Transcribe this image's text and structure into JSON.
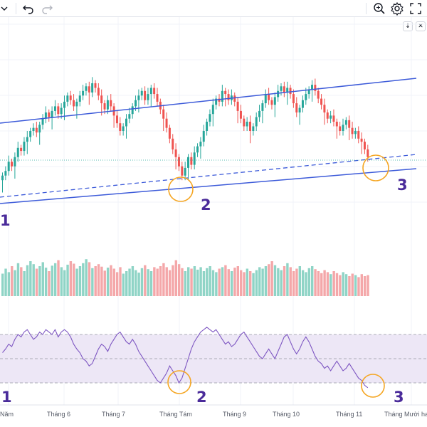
{
  "toolbar": {
    "left_icons": [
      "chevron-down-icon",
      "undo-icon",
      "redo-icon"
    ],
    "right_icons": [
      "zoom-search-icon",
      "gear-icon",
      "fullscreen-icon"
    ]
  },
  "pane_controls": {
    "down_label": "↓",
    "close_label": "✕"
  },
  "annotations": {
    "price_labels": [
      "1",
      "2",
      "3"
    ],
    "rsi_labels": [
      "1",
      "2",
      "3"
    ]
  },
  "chart_data": {
    "type": "candlestick",
    "x_ticks": [
      "Năm",
      "Tháng 6",
      "Tháng 7",
      "Tháng Tám",
      "Tháng 9",
      "Tháng 10",
      "Tháng 11",
      "Tháng Mười hai"
    ],
    "colors": {
      "up": "#26a69a",
      "down": "#ef5350",
      "up_volume": "#8fd4c6",
      "down_volume": "#f4a7a9",
      "channel": "#3d5bd9",
      "rsi_line": "#7e57c2",
      "rsi_band": "#ede7f6",
      "highlight_circle": "#f5a623",
      "annotation_text": "#4a2b9a"
    },
    "series": [
      {
        "name": "",
        "type": "candlestick",
        "close": [
          174,
          177,
          183,
          180,
          186,
          192,
          190,
          196,
          199,
          203,
          205,
          202,
          207,
          211,
          215,
          212,
          216,
          219,
          214,
          218,
          222,
          226,
          223,
          219,
          222,
          226,
          229,
          232,
          228,
          234,
          231,
          226,
          221,
          217,
          223,
          219,
          213,
          208,
          203,
          206,
          211,
          214,
          219,
          223,
          226,
          229,
          223,
          227,
          231,
          227,
          222,
          217,
          211,
          205,
          198,
          191,
          186,
          180,
          174,
          179,
          186,
          181,
          189,
          193,
          196,
          203,
          209,
          214,
          220,
          224,
          222,
          229,
          227,
          223,
          226,
          222,
          216,
          211,
          206,
          209,
          203,
          206,
          212,
          216,
          221,
          227,
          223,
          220,
          225,
          229,
          232,
          228,
          231,
          227,
          221,
          215,
          218,
          223,
          227,
          230,
          233,
          229,
          224,
          220,
          215,
          211,
          213,
          209,
          206,
          203,
          207,
          210,
          205,
          201,
          203,
          198,
          196,
          191,
          186
        ]
      }
    ],
    "volume": {
      "name": "",
      "relative_values": [
        0.45,
        0.55,
        0.48,
        0.6,
        0.52,
        0.66,
        0.58,
        0.5,
        0.62,
        0.7,
        0.64,
        0.55,
        0.6,
        0.68,
        0.57,
        0.5,
        0.61,
        0.66,
        0.72,
        0.58,
        0.52,
        0.63,
        0.7,
        0.65,
        0.55,
        0.6,
        0.66,
        0.74,
        0.68,
        0.56,
        0.6,
        0.64,
        0.59,
        0.51,
        0.57,
        0.62,
        0.55,
        0.48,
        0.58,
        0.45,
        0.5,
        0.55,
        0.6,
        0.52,
        0.47,
        0.56,
        0.62,
        0.54,
        0.5,
        0.58,
        0.55,
        0.6,
        0.66,
        0.58,
        0.52,
        0.62,
        0.72,
        0.64,
        0.56,
        0.5,
        0.58,
        0.55,
        0.6,
        0.53,
        0.58,
        0.5,
        0.56,
        0.6,
        0.52,
        0.48,
        0.55,
        0.58,
        0.62,
        0.54,
        0.5,
        0.57,
        0.6,
        0.52,
        0.48,
        0.55,
        0.5,
        0.46,
        0.52,
        0.58,
        0.55,
        0.6,
        0.64,
        0.7,
        0.62,
        0.56,
        0.52,
        0.6,
        0.66,
        0.58,
        0.5,
        0.55,
        0.6,
        0.52,
        0.48,
        0.56,
        0.6,
        0.54,
        0.5,
        0.46,
        0.52,
        0.48,
        0.44,
        0.5,
        0.46,
        0.42,
        0.48,
        0.44,
        0.4,
        0.45,
        0.42,
        0.38,
        0.44,
        0.4,
        0.42
      ]
    },
    "rsi": {
      "name": "",
      "values": [
        55,
        58,
        62,
        60,
        66,
        70,
        68,
        72,
        74,
        70,
        66,
        68,
        72,
        70,
        74,
        72,
        70,
        74,
        68,
        72,
        74,
        72,
        68,
        62,
        58,
        55,
        50,
        48,
        44,
        46,
        52,
        58,
        62,
        60,
        56,
        62,
        66,
        70,
        72,
        68,
        64,
        62,
        66,
        62,
        56,
        52,
        48,
        44,
        40,
        36,
        32,
        30,
        34,
        38,
        44,
        40,
        36,
        30,
        34,
        42,
        50,
        58,
        64,
        68,
        72,
        74,
        76,
        74,
        72,
        74,
        70,
        66,
        62,
        64,
        60,
        62,
        66,
        70,
        72,
        68,
        64,
        60,
        56,
        52,
        50,
        54,
        58,
        54,
        50,
        56,
        62,
        68,
        70,
        64,
        58,
        54,
        58,
        64,
        68,
        64,
        58,
        52,
        48,
        46,
        42,
        44,
        40,
        44,
        48,
        44,
        40,
        42,
        46,
        42,
        38,
        34,
        32,
        28,
        26
      ],
      "ylim": [
        20,
        85
      ],
      "bands": [
        30,
        50,
        70
      ]
    }
  }
}
